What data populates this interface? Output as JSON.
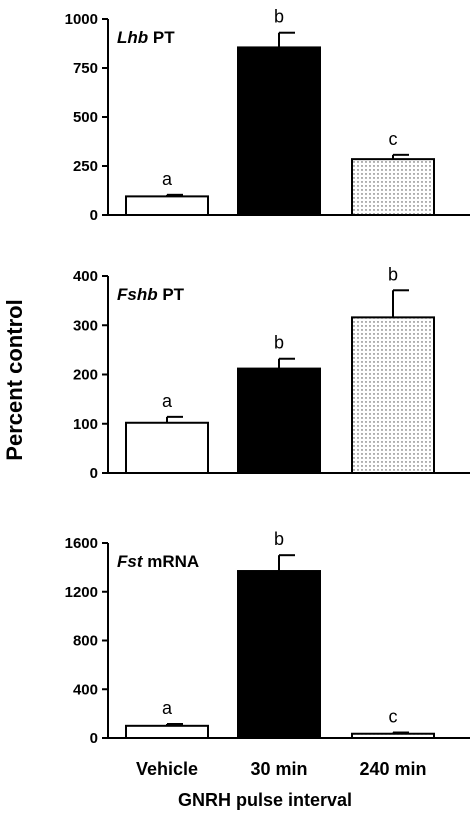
{
  "chart_data": {
    "type": "bar",
    "ylabel": "Percent control",
    "xlabel": "GNRH pulse interval",
    "categories": [
      "Vehicle",
      "30 min",
      "240 min"
    ],
    "fills": [
      "#ffffff",
      "#000000",
      "dotted"
    ],
    "panels": [
      {
        "label_italic": "Lhb",
        "label_rest": " PT",
        "ylim": [
          0,
          1000
        ],
        "yticks": [
          0,
          250,
          500,
          750,
          1000
        ],
        "values": [
          95,
          855,
          285
        ],
        "errors": [
          8,
          75,
          22
        ],
        "letters": [
          "a",
          "b",
          "c"
        ]
      },
      {
        "label_italic": "Fshb",
        "label_rest": " PT",
        "ylim": [
          0,
          400
        ],
        "yticks": [
          0,
          100,
          200,
          300,
          400
        ],
        "values": [
          102,
          212,
          316
        ],
        "errors": [
          12,
          20,
          55
        ],
        "letters": [
          "a",
          "b",
          "b"
        ]
      },
      {
        "label_italic": "Fst",
        "label_rest": " mRNA",
        "ylim": [
          0,
          1600
        ],
        "yticks": [
          0,
          400,
          800,
          1200,
          1600
        ],
        "values": [
          100,
          1370,
          35
        ],
        "errors": [
          15,
          130,
          10
        ],
        "letters": [
          "a",
          "b",
          "c"
        ]
      }
    ]
  }
}
